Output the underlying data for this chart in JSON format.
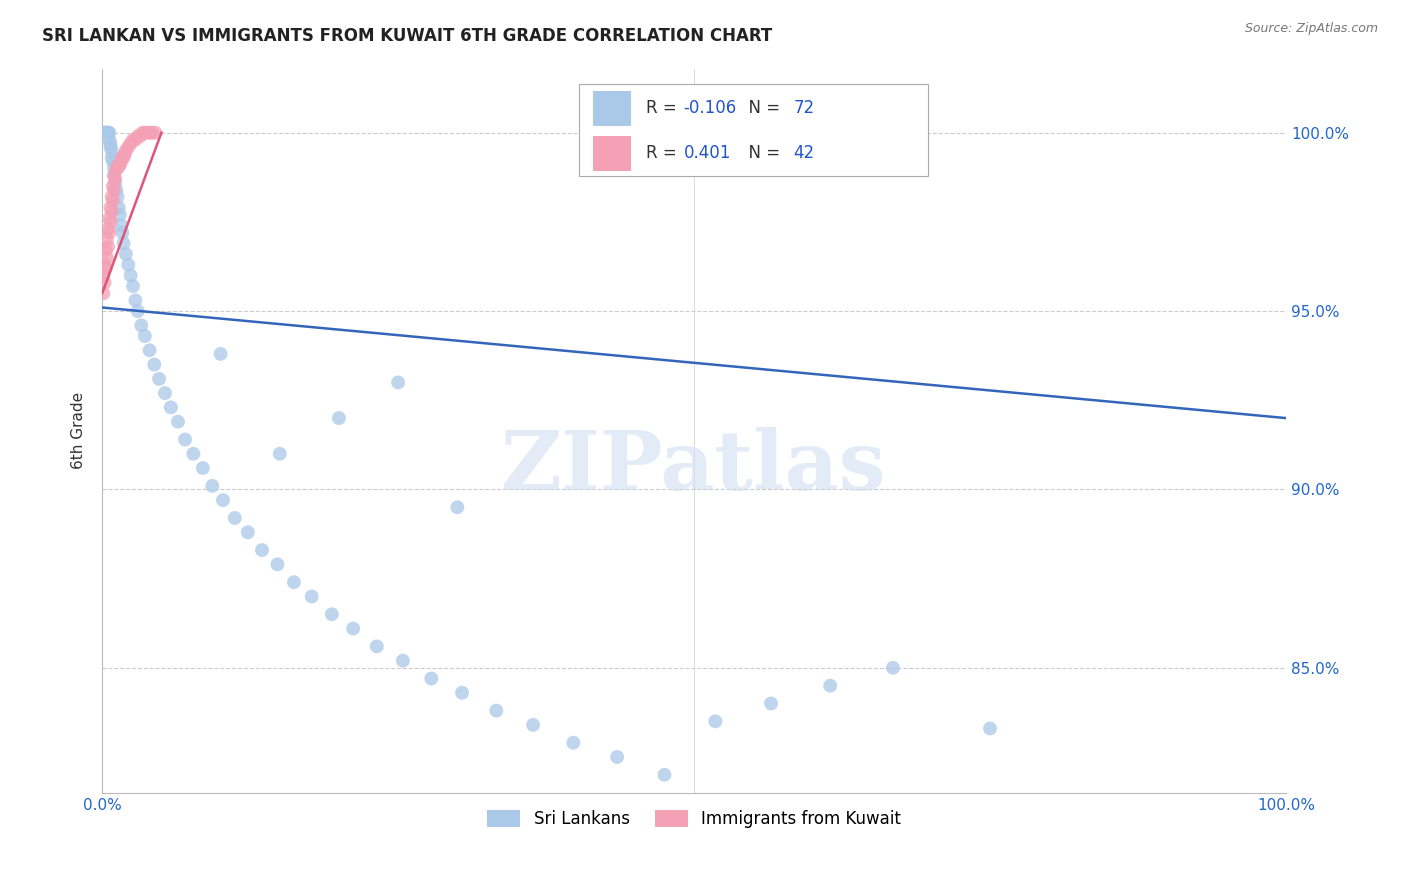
{
  "title": "SRI LANKAN VS IMMIGRANTS FROM KUWAIT 6TH GRADE CORRELATION CHART",
  "source": "Source: ZipAtlas.com",
  "ylabel": "6th Grade",
  "watermark": "ZIPatlas",
  "ytick_labels": [
    "100.0%",
    "95.0%",
    "90.0%",
    "85.0%"
  ],
  "ytick_values": [
    1.0,
    0.95,
    0.9,
    0.85
  ],
  "xlim": [
    0.0,
    1.0
  ],
  "ylim": [
    0.815,
    1.018
  ],
  "blue_R": -0.106,
  "blue_N": 72,
  "pink_R": 0.401,
  "pink_N": 42,
  "blue_color": "#aac8e8",
  "blue_line_color": "#3366bb",
  "pink_color": "#f4a0b5",
  "pink_line_color": "#dd5577",
  "blue_scatter_x": [
    0.001,
    0.002,
    0.002,
    0.003,
    0.003,
    0.004,
    0.004,
    0.005,
    0.005,
    0.006,
    0.006,
    0.007,
    0.007,
    0.008,
    0.008,
    0.009,
    0.01,
    0.01,
    0.011,
    0.012,
    0.013,
    0.014,
    0.015,
    0.016,
    0.017,
    0.018,
    0.02,
    0.022,
    0.024,
    0.026,
    0.028,
    0.03,
    0.033,
    0.036,
    0.04,
    0.044,
    0.048,
    0.053,
    0.058,
    0.064,
    0.07,
    0.077,
    0.085,
    0.093,
    0.102,
    0.112,
    0.123,
    0.135,
    0.148,
    0.162,
    0.177,
    0.194,
    0.212,
    0.232,
    0.254,
    0.278,
    0.304,
    0.333,
    0.364,
    0.398,
    0.435,
    0.475,
    0.518,
    0.565,
    0.615,
    0.668,
    0.1,
    0.15,
    0.2,
    0.25,
    0.3,
    0.75
  ],
  "blue_scatter_y": [
    1.0,
    1.0,
    1.0,
    1.0,
    1.0,
    1.0,
    1.0,
    1.0,
    1.0,
    1.0,
    0.998,
    0.997,
    0.996,
    0.995,
    0.993,
    0.992,
    0.99,
    0.988,
    0.986,
    0.984,
    0.982,
    0.979,
    0.977,
    0.974,
    0.972,
    0.969,
    0.966,
    0.963,
    0.96,
    0.957,
    0.953,
    0.95,
    0.946,
    0.943,
    0.939,
    0.935,
    0.931,
    0.927,
    0.923,
    0.919,
    0.914,
    0.91,
    0.906,
    0.901,
    0.897,
    0.892,
    0.888,
    0.883,
    0.879,
    0.874,
    0.87,
    0.865,
    0.861,
    0.856,
    0.852,
    0.847,
    0.843,
    0.838,
    0.834,
    0.829,
    0.825,
    0.82,
    0.835,
    0.84,
    0.845,
    0.85,
    0.938,
    0.91,
    0.92,
    0.93,
    0.895,
    0.833
  ],
  "pink_scatter_x": [
    0.001,
    0.001,
    0.002,
    0.002,
    0.003,
    0.003,
    0.004,
    0.004,
    0.005,
    0.005,
    0.006,
    0.006,
    0.007,
    0.007,
    0.008,
    0.008,
    0.009,
    0.009,
    0.01,
    0.01,
    0.011,
    0.012,
    0.013,
    0.014,
    0.015,
    0.016,
    0.017,
    0.018,
    0.019,
    0.02,
    0.022,
    0.024,
    0.026,
    0.028,
    0.03,
    0.032,
    0.034,
    0.036,
    0.038,
    0.04,
    0.042,
    0.045
  ],
  "pink_scatter_y": [
    0.955,
    0.96,
    0.958,
    0.963,
    0.962,
    0.967,
    0.965,
    0.97,
    0.968,
    0.973,
    0.972,
    0.976,
    0.975,
    0.979,
    0.978,
    0.982,
    0.981,
    0.985,
    0.984,
    0.988,
    0.987,
    0.99,
    0.99,
    0.991,
    0.991,
    0.992,
    0.993,
    0.993,
    0.994,
    0.995,
    0.996,
    0.997,
    0.998,
    0.998,
    0.999,
    0.999,
    1.0,
    1.0,
    1.0,
    1.0,
    1.0,
    1.0
  ],
  "blue_trend_x0": 0.0,
  "blue_trend_x1": 1.0,
  "blue_trend_y0": 0.951,
  "blue_trend_y1": 0.92,
  "pink_trend_x0": 0.0,
  "pink_trend_x1": 0.05,
  "pink_trend_y0": 0.955,
  "pink_trend_y1": 1.0
}
